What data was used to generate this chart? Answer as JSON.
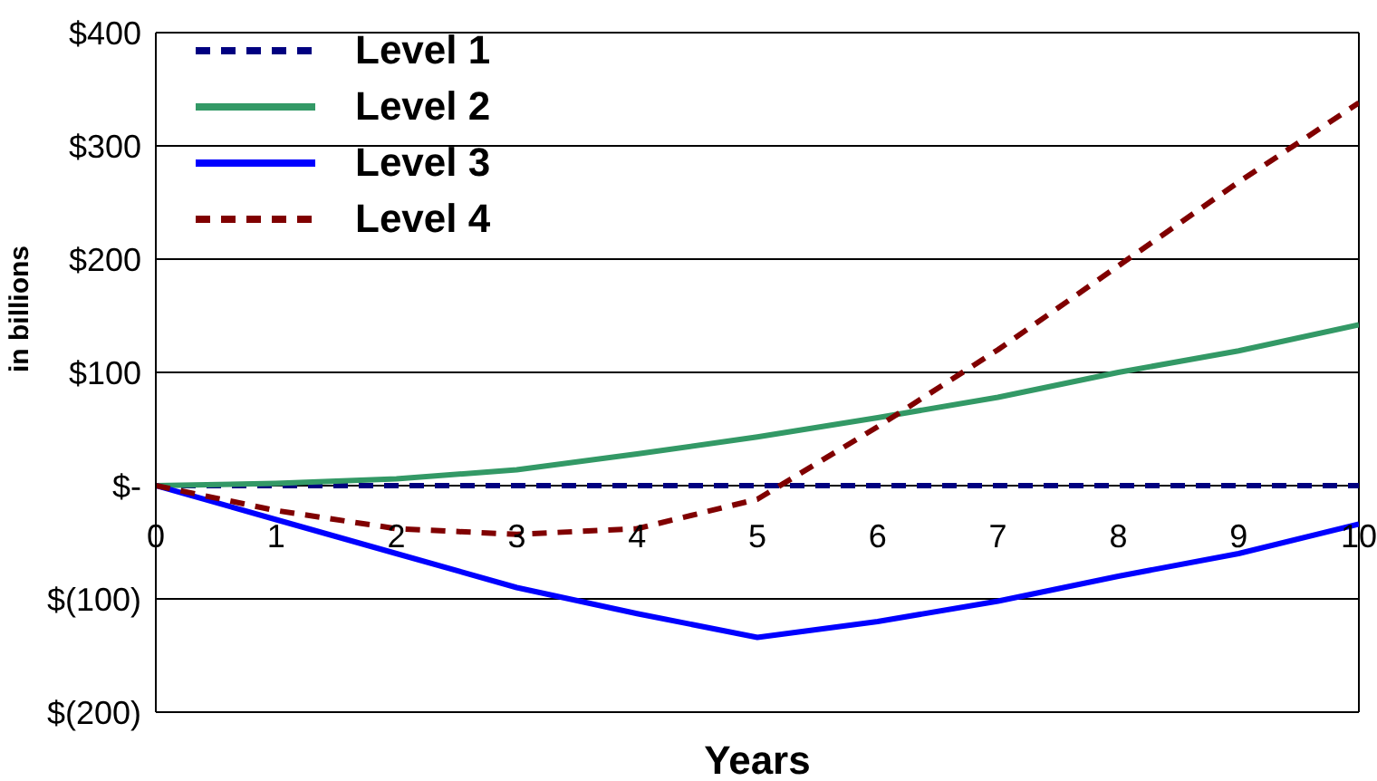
{
  "chart_data": {
    "type": "line",
    "xlabel": "Years",
    "ylabel": "in  billions",
    "x": [
      0,
      1,
      2,
      3,
      4,
      5,
      6,
      7,
      8,
      9,
      10
    ],
    "series": [
      {
        "name": "Level 1",
        "color": "#000080",
        "line_style": "dashed",
        "values": [
          0,
          0,
          0,
          0,
          0,
          0,
          0,
          0,
          0,
          0,
          0
        ]
      },
      {
        "name": "Level 2",
        "color": "#339966",
        "line_style": "solid",
        "values": [
          0,
          2,
          6,
          14,
          28,
          43,
          60,
          78,
          100,
          119,
          142
        ]
      },
      {
        "name": "Level 3",
        "color": "#0000ff",
        "line_style": "solid",
        "values": [
          0,
          -30,
          -60,
          -90,
          -113,
          -134,
          -120,
          -102,
          -80,
          -60,
          -34
        ]
      },
      {
        "name": "Level 4",
        "color": "#800000",
        "line_style": "dashed",
        "values": [
          0,
          -22,
          -38,
          -43,
          -38,
          -12,
          52,
          120,
          194,
          268,
          338
        ]
      }
    ],
    "xlim": [
      0,
      10
    ],
    "xticks": [
      0,
      1,
      2,
      3,
      4,
      5,
      6,
      7,
      8,
      9,
      10
    ],
    "ylim": [
      -200,
      400
    ],
    "yticks": [
      {
        "value": -200,
        "label": "$(200)"
      },
      {
        "value": -100,
        "label": "$(100)"
      },
      {
        "value": 0,
        "label": "$-"
      },
      {
        "value": 100,
        "label": "$100"
      },
      {
        "value": 200,
        "label": "$200"
      },
      {
        "value": 300,
        "label": "$300"
      },
      {
        "value": 400,
        "label": "$400"
      }
    ],
    "grid": "y",
    "legend": "top left",
    "marker": "none"
  }
}
